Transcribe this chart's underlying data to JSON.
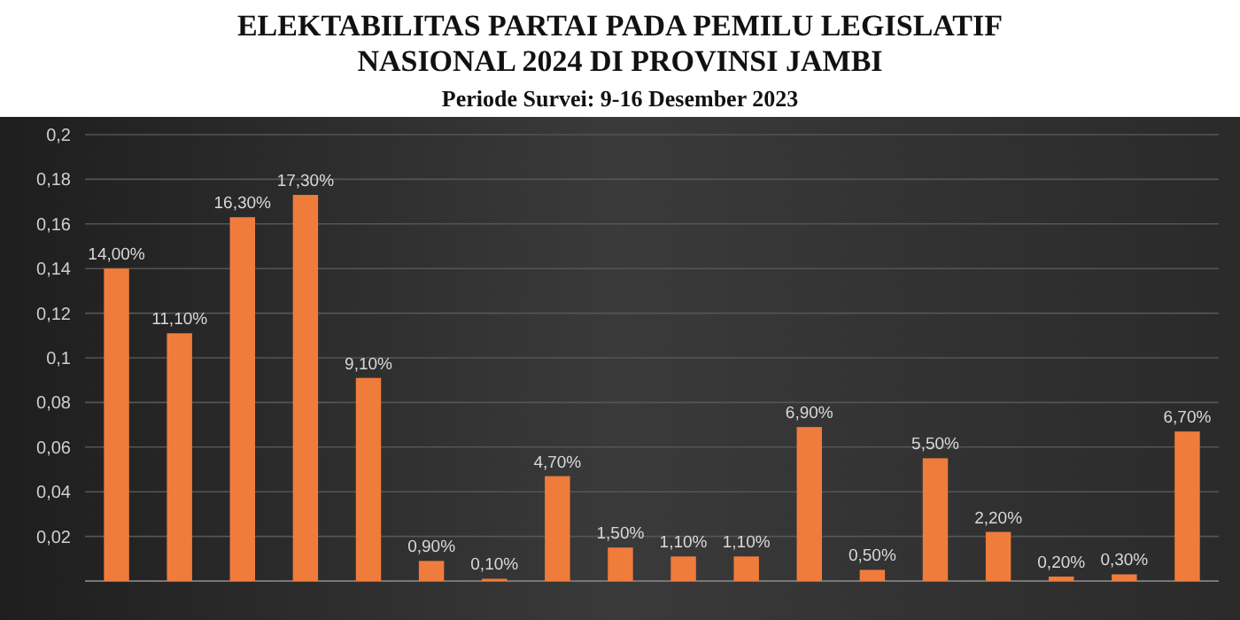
{
  "chart_data": {
    "type": "bar",
    "title": "ELEKTABILITAS PARTAI PADA PEMILU LEGISLATIF NASIONAL 2024 DI PROVINSI JAMBI",
    "subtitle": "Periode Survei: 9-16 Desember 2023",
    "categories": [
      null,
      null,
      null,
      null,
      null,
      null,
      null,
      null,
      null,
      null,
      null,
      null,
      null,
      null,
      null,
      null,
      null,
      null
    ],
    "values": [
      0.14,
      0.111,
      0.163,
      0.173,
      0.091,
      0.009,
      0.001,
      0.047,
      0.015,
      0.011,
      0.011,
      0.069,
      0.005,
      0.055,
      0.022,
      0.002,
      0.003,
      0.067
    ],
    "value_labels": [
      "14,00%",
      "11,10%",
      "16,30%",
      "17,30%",
      "9,10%",
      "0,90%",
      "0,10%",
      "4,70%",
      "1,50%",
      "1,10%",
      "1,10%",
      "6,90%",
      "0,50%",
      "5,50%",
      "2,20%",
      "0,20%",
      "0,30%",
      "6,70%"
    ],
    "color": "#f07c3c",
    "ylim": [
      0,
      0.2
    ],
    "yticks": [
      {
        "value": 0.02,
        "label": "0,02"
      },
      {
        "value": 0.04,
        "label": "0,04"
      },
      {
        "value": 0.06,
        "label": "0,06"
      },
      {
        "value": 0.08,
        "label": "0,08"
      },
      {
        "value": 0.1,
        "label": "0,1"
      },
      {
        "value": 0.12,
        "label": "0,12"
      },
      {
        "value": 0.14,
        "label": "0,14"
      },
      {
        "value": 0.16,
        "label": "0,16"
      },
      {
        "value": 0.18,
        "label": "0,18"
      },
      {
        "value": 0.2,
        "label": "0,2"
      }
    ],
    "grid": "y"
  }
}
